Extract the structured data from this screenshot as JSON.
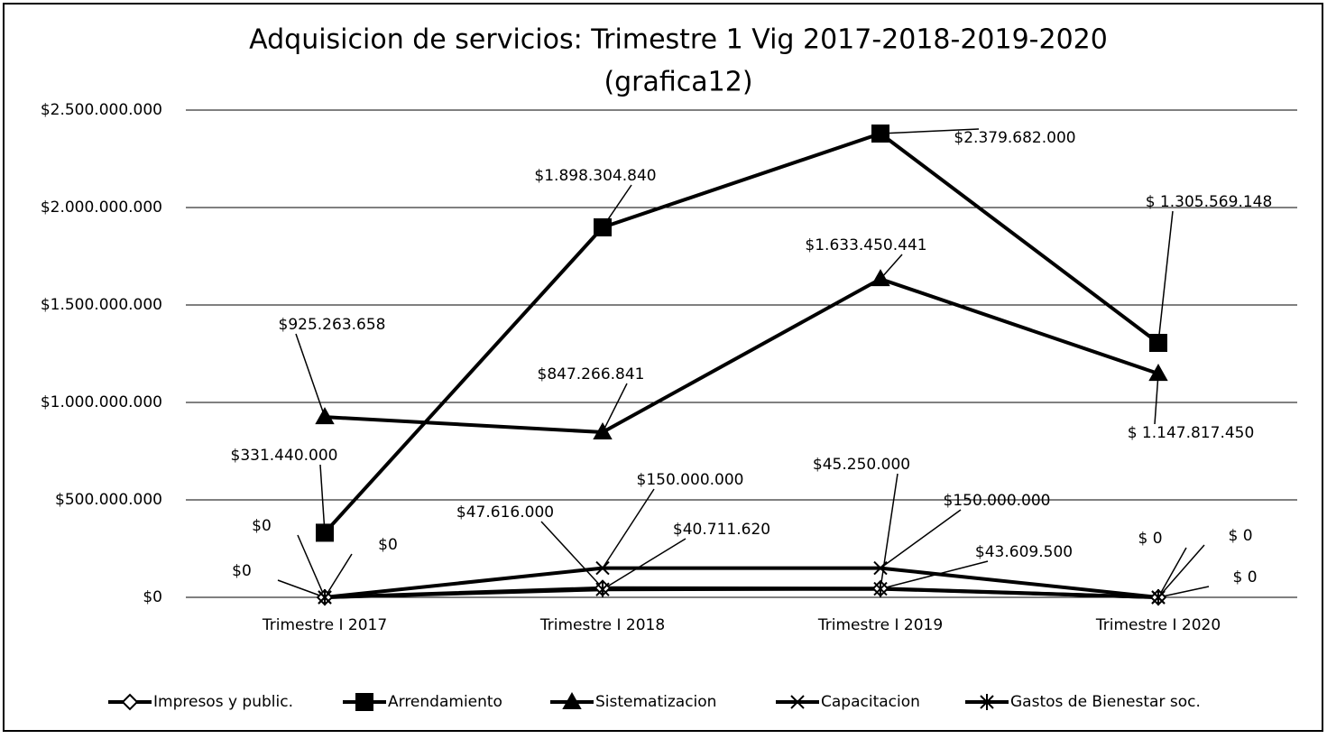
{
  "chart_data": {
    "type": "line",
    "title": "Adquisicion de servicios: Trimestre 1 Vig 2017-2018-2019-2020",
    "subtitle": "(grafica12)",
    "categories": [
      "Trimestre I 2017",
      "Trimestre I 2018",
      "Trimestre I 2019",
      "Trimestre I 2020"
    ],
    "ylim": [
      0,
      2500000000
    ],
    "yticks": [
      {
        "value": 0,
        "label": "$0"
      },
      {
        "value": 500000000,
        "label": "$500.000.000"
      },
      {
        "value": 1000000000,
        "label": "$1.000.000.000"
      },
      {
        "value": 1500000000,
        "label": "$1.500.000.000"
      },
      {
        "value": 2000000000,
        "label": "$2.000.000.000"
      },
      {
        "value": 2500000000,
        "label": "$2.500.000.000"
      }
    ],
    "grid": true,
    "legend": "bottom",
    "series": [
      {
        "name": "Impresos y public.",
        "color": "#000000",
        "marker": "diamond",
        "values": [
          0,
          47616000,
          45250000,
          0
        ],
        "value_labels": [
          "$0",
          "$47.616.000",
          "$45.250.000",
          "$ 0"
        ]
      },
      {
        "name": "Arrendamiento",
        "color": "#000000",
        "marker": "square",
        "values": [
          331440000,
          1898304840,
          2379682000,
          1305569148
        ],
        "value_labels": [
          "$331.440.000",
          "$1.898.304.840",
          "$2.379.682.000",
          "$ 1.305.569.148"
        ]
      },
      {
        "name": "Sistematizacion",
        "color": "#000000",
        "marker": "triangle",
        "values": [
          925263658,
          847266841,
          1633450441,
          1147817450
        ],
        "value_labels": [
          "$925.263.658",
          "$847.266.841",
          "$1.633.450.441",
          "$ 1.147.817.450"
        ]
      },
      {
        "name": "Capacitacion",
        "color": "#000000",
        "marker": "x",
        "values": [
          0,
          150000000,
          150000000,
          0
        ],
        "value_labels": [
          "$0",
          "$150.000.000",
          "$150.000.000",
          "$ 0"
        ]
      },
      {
        "name": "Gastos de Bienestar soc.",
        "color": "#000000",
        "marker": "asterisk",
        "values": [
          0,
          40711620,
          43609500,
          0
        ],
        "value_labels": [
          "$0",
          "$40.711.620",
          "$43.609.500",
          "$ 0"
        ]
      }
    ]
  }
}
